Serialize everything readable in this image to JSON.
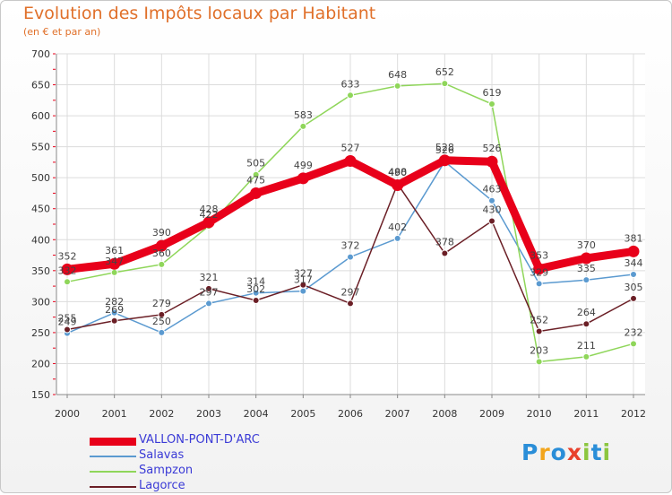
{
  "title": "Evolution des Impôts locaux par Habitant",
  "subtitle": "(en € et par an)",
  "logo": {
    "letters": [
      "P",
      "r",
      "o",
      "x",
      "i",
      "t",
      "i"
    ],
    "colors": [
      "#2a8ed8",
      "#f2a51c",
      "#2a8ed8",
      "#e8412c",
      "#8cc63f",
      "#2a8ed8",
      "#8cc63f"
    ]
  },
  "chart_data": {
    "type": "line",
    "title": "Evolution des Impôts locaux par Habitant",
    "subtitle": "(en € et par an)",
    "x": [
      "2000",
      "2001",
      "2002",
      "2003",
      "2004",
      "2005",
      "2006",
      "2007",
      "2008",
      "2009",
      "2010",
      "2011",
      "2012"
    ],
    "ylim": [
      150,
      700
    ],
    "yticks": [
      150,
      200,
      250,
      300,
      350,
      400,
      450,
      500,
      550,
      600,
      650,
      700
    ],
    "grid": true,
    "legend_position": "bottom-left",
    "series": [
      {
        "name": "VALLON-PONT-D'ARC",
        "color": "#e8001a",
        "emphasis": true,
        "values": [
          352,
          361,
          390,
          428,
          475,
          499,
          527,
          488,
          528,
          526,
          353,
          370,
          381
        ],
        "labels": [
          "352",
          "361",
          "390",
          "428",
          "475",
          "499",
          "527",
          "488",
          "528",
          "526",
          "353",
          "370",
          "381"
        ]
      },
      {
        "name": "Salavas",
        "color": "#5b9ad0",
        "emphasis": false,
        "values": [
          249,
          282,
          250,
          297,
          314,
          317,
          372,
          402,
          526,
          463,
          329,
          335,
          344
        ],
        "labels": [
          "249",
          "282",
          "250",
          "297",
          "314",
          "317",
          "372",
          "402",
          "526",
          "463",
          "329",
          "335",
          "344"
        ]
      },
      {
        "name": "Sampzon",
        "color": "#8fd65a",
        "emphasis": false,
        "values": [
          332,
          347,
          360,
          422,
          505,
          583,
          633,
          648,
          652,
          619,
          203,
          211,
          232
        ],
        "labels": [
          "332",
          "347",
          "360",
          "422",
          "505",
          "583",
          "633",
          "648",
          "652",
          "619",
          "203",
          "211",
          "232"
        ]
      },
      {
        "name": "Lagorce",
        "color": "#6b1f26",
        "emphasis": false,
        "values": [
          255,
          269,
          279,
          321,
          302,
          327,
          297,
          490,
          378,
          430,
          252,
          264,
          305
        ],
        "labels": [
          "255",
          "269",
          "279",
          "321",
          "302",
          "327",
          "297",
          "490",
          "378",
          "430",
          "252",
          "264",
          "305"
        ]
      }
    ]
  }
}
